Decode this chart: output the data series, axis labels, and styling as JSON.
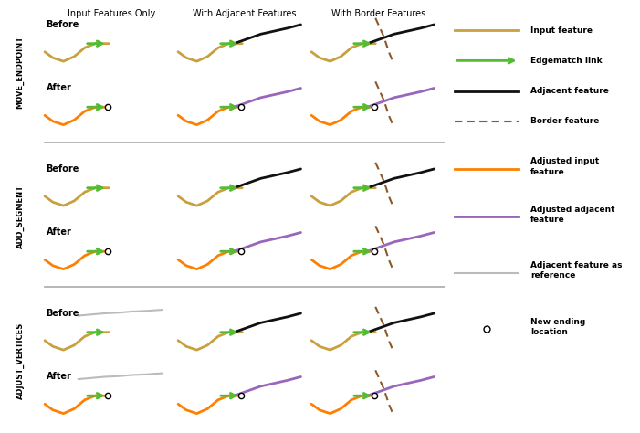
{
  "col_headers": [
    "Input Features Only",
    "With Adjacent Features",
    "With Border Features"
  ],
  "row_headers": [
    "MOVE_ENDPOINT",
    "ADD_SEGMENT",
    "ADJUST_VERTICES"
  ],
  "colors": {
    "input": "#C8A040",
    "adj_input": "#FF8000",
    "adjacent": "#111111",
    "border": "#8B5A2B",
    "edgematch": "#55BB33",
    "adj_adjacent": "#9966BB",
    "ref_adjacent": "#BBBBBB"
  },
  "bg_color": "#FFFFFF"
}
